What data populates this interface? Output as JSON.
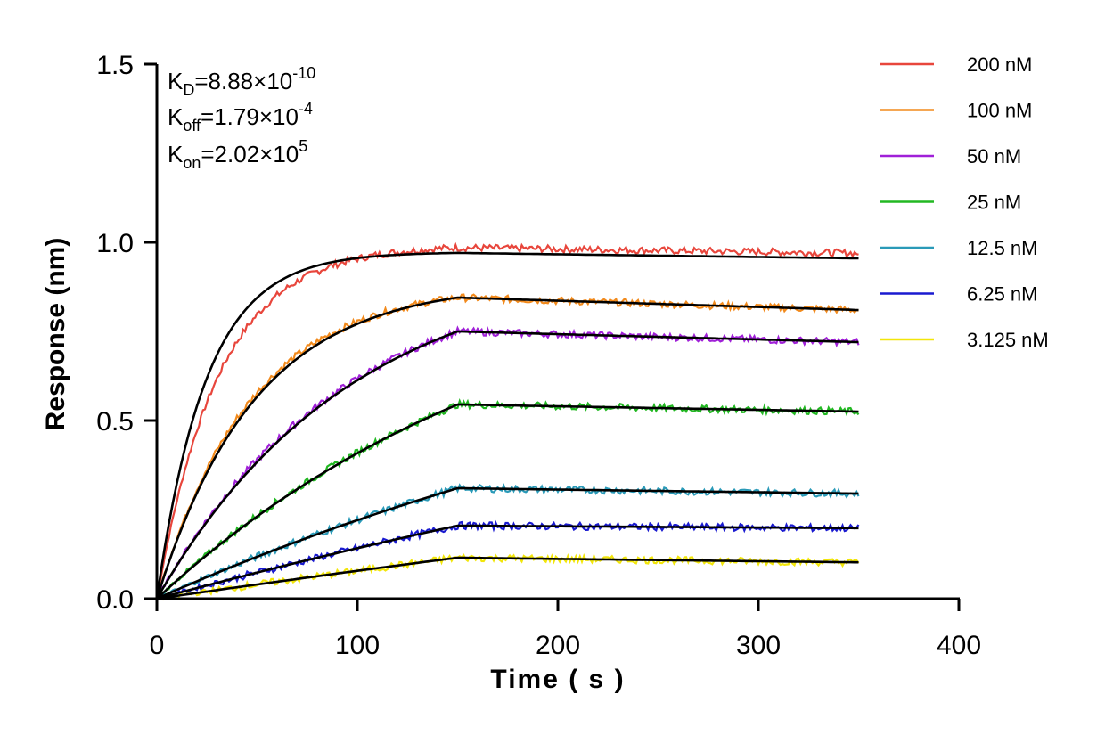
{
  "chart_data": {
    "type": "line",
    "title": "",
    "xlabel": "Time ( s )",
    "ylabel": "Response (nm)",
    "xlim": [
      0,
      400
    ],
    "ylim": [
      0,
      1.5
    ],
    "xticks": [
      0,
      100,
      200,
      300,
      400
    ],
    "xtick_labels": [
      "0",
      "100",
      "200",
      "300",
      "400"
    ],
    "yticks": [
      0,
      0.5,
      1.0,
      1.5
    ],
    "ytick_labels": [
      "0.0",
      "0.5",
      "1.0",
      "1.5"
    ],
    "grid": false,
    "legend_position": "top-right",
    "association_end": 150,
    "dissociation_end": 350,
    "kon": 202000,
    "koff": 0.000179,
    "kinetics": {
      "kd": {
        "base": "K",
        "sub": "D",
        "mantissa": "=8.88×10",
        "exp": "-10"
      },
      "koff": {
        "base": "K",
        "sub": "off",
        "mantissa": "=1.79×10",
        "exp": "-4"
      },
      "kon": {
        "base": "K",
        "sub": "on",
        "mantissa": "=2.02×10",
        "exp": "5"
      }
    },
    "series": [
      {
        "name": "200 nM",
        "conc_nM": 200,
        "color": "#e8463c",
        "peak": 0.985,
        "end": 0.955
      },
      {
        "name": "100 nM",
        "conc_nM": 100,
        "color": "#f28a1c",
        "peak": 0.845,
        "end": 0.81
      },
      {
        "name": "50 nM",
        "conc_nM": 50,
        "color": "#a020d8",
        "peak": 0.75,
        "end": 0.72
      },
      {
        "name": "25 nM",
        "conc_nM": 25,
        "color": "#22b822",
        "peak": 0.545,
        "end": 0.525
      },
      {
        "name": "12.5 nM",
        "conc_nM": 12.5,
        "color": "#2a9ab8",
        "peak": 0.31,
        "end": 0.295
      },
      {
        "name": "6.25 nM",
        "conc_nM": 6.25,
        "color": "#1a1ad0",
        "peak": 0.205,
        "end": 0.198
      },
      {
        "name": "3.125 nM",
        "conc_nM": 3.125,
        "color": "#f2e60a",
        "peak": 0.115,
        "end": 0.102
      }
    ],
    "fit_color": "#000000"
  }
}
